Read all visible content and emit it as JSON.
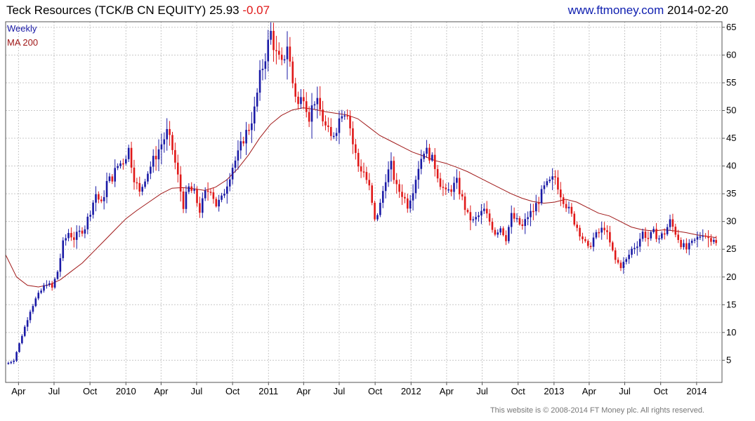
{
  "header": {
    "security": "Teck Resources (TCK/B CN EQUITY)",
    "last_price": "25.93",
    "change": "-0.07",
    "website": "www.ftmoney.com",
    "date": "2014-02-20"
  },
  "footer": {
    "copyright": "This website is © 2008-2014 FT Money plc. All rights reserved."
  },
  "colors": {
    "up": "#1a1aa6",
    "down": "#e01818",
    "ma": "#a01818",
    "grid": "#c8c8c8",
    "frame": "#555555"
  },
  "chart_data": {
    "type": "candlestick",
    "interval": "Weekly",
    "legend": [
      "Weekly",
      "MA 200"
    ],
    "y_axis": {
      "side": "right",
      "ticks": [
        5,
        10,
        15,
        20,
        25,
        30,
        35,
        40,
        45,
        50,
        55,
        60,
        65
      ],
      "range": [
        1,
        66
      ]
    },
    "x_axis": {
      "range": [
        "2009-02-27",
        "2014-03-07"
      ],
      "ticks": [
        {
          "label": "Apr",
          "date": "2009-04-01"
        },
        {
          "label": "Jul",
          "date": "2009-07-01"
        },
        {
          "label": "Oct",
          "date": "2009-10-01"
        },
        {
          "label": "2010",
          "date": "2010-01-01"
        },
        {
          "label": "Apr",
          "date": "2010-04-01"
        },
        {
          "label": "Jul",
          "date": "2010-07-01"
        },
        {
          "label": "Oct",
          "date": "2010-10-01"
        },
        {
          "label": "2011",
          "date": "2011-01-01"
        },
        {
          "label": "Apr",
          "date": "2011-04-01"
        },
        {
          "label": "Jul",
          "date": "2011-07-01"
        },
        {
          "label": "Oct",
          "date": "2011-10-01"
        },
        {
          "label": "2012",
          "date": "2012-01-01"
        },
        {
          "label": "Apr",
          "date": "2012-04-01"
        },
        {
          "label": "Jul",
          "date": "2012-07-01"
        },
        {
          "label": "Oct",
          "date": "2012-10-01"
        },
        {
          "label": "2013",
          "date": "2013-01-01"
        },
        {
          "label": "Apr",
          "date": "2013-04-01"
        },
        {
          "label": "Jul",
          "date": "2013-07-01"
        },
        {
          "label": "Oct",
          "date": "2013-10-01"
        },
        {
          "label": "2014",
          "date": "2014-01-01"
        }
      ]
    },
    "weekly_close": [
      [
        "2009-03-06",
        4.5
      ],
      [
        "2009-03-20",
        5
      ],
      [
        "2009-04-03",
        8
      ],
      [
        "2009-04-17",
        11
      ],
      [
        "2009-05-01",
        14
      ],
      [
        "2009-05-15",
        16
      ],
      [
        "2009-05-29",
        17.5
      ],
      [
        "2009-06-12",
        19
      ],
      [
        "2009-06-26",
        18
      ],
      [
        "2009-07-10",
        21
      ],
      [
        "2009-07-24",
        26
      ],
      [
        "2009-08-07",
        28
      ],
      [
        "2009-08-21",
        27
      ],
      [
        "2009-09-04",
        28
      ],
      [
        "2009-09-18",
        29
      ],
      [
        "2009-10-02",
        32
      ],
      [
        "2009-10-16",
        35
      ],
      [
        "2009-10-30",
        33
      ],
      [
        "2009-11-13",
        37
      ],
      [
        "2009-11-27",
        38
      ],
      [
        "2009-12-11",
        40
      ],
      [
        "2009-12-25",
        41
      ],
      [
        "2010-01-08",
        43
      ],
      [
        "2010-01-22",
        38
      ],
      [
        "2010-02-05",
        35
      ],
      [
        "2010-02-19",
        38
      ],
      [
        "2010-03-05",
        40
      ],
      [
        "2010-03-19",
        42
      ],
      [
        "2010-04-02",
        44
      ],
      [
        "2010-04-16",
        46
      ],
      [
        "2010-04-30",
        43
      ],
      [
        "2010-05-14",
        38
      ],
      [
        "2010-05-28",
        33
      ],
      [
        "2010-06-11",
        36
      ],
      [
        "2010-06-25",
        35
      ],
      [
        "2010-07-09",
        32
      ],
      [
        "2010-07-23",
        35
      ],
      [
        "2010-08-06",
        36
      ],
      [
        "2010-08-20",
        33
      ],
      [
        "2010-09-03",
        34
      ],
      [
        "2010-09-17",
        37
      ],
      [
        "2010-10-01",
        40
      ],
      [
        "2010-10-15",
        42
      ],
      [
        "2010-10-29",
        45
      ],
      [
        "2010-11-12",
        47
      ],
      [
        "2010-11-26",
        50
      ],
      [
        "2010-12-10",
        56
      ],
      [
        "2010-12-24",
        60
      ],
      [
        "2011-01-07",
        64
      ],
      [
        "2011-01-21",
        60
      ],
      [
        "2011-02-04",
        58
      ],
      [
        "2011-02-18",
        62
      ],
      [
        "2011-03-04",
        55
      ],
      [
        "2011-03-18",
        51
      ],
      [
        "2011-04-01",
        53
      ],
      [
        "2011-04-15",
        49
      ],
      [
        "2011-04-29",
        52
      ],
      [
        "2011-05-13",
        50
      ],
      [
        "2011-05-27",
        47
      ],
      [
        "2011-06-10",
        45
      ],
      [
        "2011-06-24",
        47
      ],
      [
        "2011-07-08",
        50
      ],
      [
        "2011-07-22",
        50
      ],
      [
        "2011-08-05",
        44
      ],
      [
        "2011-08-19",
        40
      ],
      [
        "2011-09-02",
        39
      ],
      [
        "2011-09-16",
        36
      ],
      [
        "2011-09-30",
        30
      ],
      [
        "2011-10-14",
        33
      ],
      [
        "2011-10-28",
        38
      ],
      [
        "2011-11-11",
        40
      ],
      [
        "2011-11-25",
        36
      ],
      [
        "2011-12-09",
        35
      ],
      [
        "2011-12-23",
        33
      ],
      [
        "2012-01-06",
        36
      ],
      [
        "2012-01-20",
        40
      ],
      [
        "2012-02-03",
        43
      ],
      [
        "2012-02-17",
        42
      ],
      [
        "2012-03-02",
        40
      ],
      [
        "2012-03-16",
        37
      ],
      [
        "2012-03-30",
        35
      ],
      [
        "2012-04-13",
        36
      ],
      [
        "2012-04-27",
        37
      ],
      [
        "2012-05-11",
        34
      ],
      [
        "2012-05-25",
        31
      ],
      [
        "2012-06-08",
        30
      ],
      [
        "2012-06-22",
        31
      ],
      [
        "2012-07-06",
        32
      ],
      [
        "2012-07-20",
        30
      ],
      [
        "2012-08-03",
        28
      ],
      [
        "2012-08-17",
        29
      ],
      [
        "2012-08-31",
        27
      ],
      [
        "2012-09-14",
        31
      ],
      [
        "2012-09-28",
        30
      ],
      [
        "2012-10-12",
        29
      ],
      [
        "2012-10-26",
        31
      ],
      [
        "2012-11-09",
        32
      ],
      [
        "2012-11-23",
        34
      ],
      [
        "2012-12-07",
        36
      ],
      [
        "2012-12-21",
        37
      ],
      [
        "2013-01-04",
        38
      ],
      [
        "2013-01-18",
        35
      ],
      [
        "2013-02-01",
        33
      ],
      [
        "2013-02-15",
        31
      ],
      [
        "2013-03-01",
        29
      ],
      [
        "2013-03-15",
        27
      ],
      [
        "2013-03-29",
        25
      ],
      [
        "2013-04-12",
        27
      ],
      [
        "2013-04-26",
        28
      ],
      [
        "2013-05-10",
        29
      ],
      [
        "2013-05-24",
        26
      ],
      [
        "2013-06-07",
        23
      ],
      [
        "2013-06-21",
        22
      ],
      [
        "2013-07-05",
        23
      ],
      [
        "2013-07-19",
        25
      ],
      [
        "2013-08-02",
        26
      ],
      [
        "2013-08-16",
        28
      ],
      [
        "2013-08-30",
        27
      ],
      [
        "2013-09-13",
        28
      ],
      [
        "2013-09-27",
        27
      ],
      [
        "2013-10-11",
        28
      ],
      [
        "2013-10-25",
        30
      ],
      [
        "2013-11-08",
        28
      ],
      [
        "2013-11-22",
        26
      ],
      [
        "2013-12-06",
        25
      ],
      [
        "2013-12-20",
        26
      ],
      [
        "2014-01-03",
        27
      ],
      [
        "2014-01-17",
        28
      ],
      [
        "2014-01-31",
        27
      ],
      [
        "2014-02-14",
        27
      ],
      [
        "2014-02-20",
        25.93
      ]
    ],
    "ma_200": [
      [
        "2009-02-27",
        24
      ],
      [
        "2009-03-27",
        20
      ],
      [
        "2009-04-24",
        18.5
      ],
      [
        "2009-05-22",
        18.2
      ],
      [
        "2009-06-19",
        18.6
      ],
      [
        "2009-07-17",
        19.5
      ],
      [
        "2009-08-14",
        21
      ],
      [
        "2009-09-11",
        22.5
      ],
      [
        "2009-10-09",
        24.5
      ],
      [
        "2009-11-06",
        26.5
      ],
      [
        "2009-12-04",
        28.5
      ],
      [
        "2010-01-01",
        30.5
      ],
      [
        "2010-01-29",
        32
      ],
      [
        "2010-03-01",
        33.5
      ],
      [
        "2010-04-01",
        35
      ],
      [
        "2010-04-29",
        36
      ],
      [
        "2010-05-27",
        36.1
      ],
      [
        "2010-06-24",
        35.9
      ],
      [
        "2010-07-22",
        35.6
      ],
      [
        "2010-08-19",
        36.2
      ],
      [
        "2010-09-16",
        37.5
      ],
      [
        "2010-10-14",
        39.5
      ],
      [
        "2010-11-11",
        42
      ],
      [
        "2010-12-09",
        45
      ],
      [
        "2011-01-06",
        47.5
      ],
      [
        "2011-02-03",
        49.1
      ],
      [
        "2011-03-03",
        50.1
      ],
      [
        "2011-03-31",
        50.5
      ],
      [
        "2011-04-28",
        50.2
      ],
      [
        "2011-05-26",
        49.8
      ],
      [
        "2011-06-23",
        49.5
      ],
      [
        "2011-07-21",
        49.2
      ],
      [
        "2011-08-18",
        48.5
      ],
      [
        "2011-09-15",
        47
      ],
      [
        "2011-10-13",
        45.5
      ],
      [
        "2011-11-10",
        44.5
      ],
      [
        "2011-12-08",
        43.5
      ],
      [
        "2012-01-05",
        42.5
      ],
      [
        "2012-02-02",
        41.8
      ],
      [
        "2012-03-01",
        41
      ],
      [
        "2012-03-29",
        40.5
      ],
      [
        "2012-04-26",
        39.8
      ],
      [
        "2012-05-24",
        39
      ],
      [
        "2012-06-21",
        38
      ],
      [
        "2012-07-19",
        37
      ],
      [
        "2012-08-16",
        36
      ],
      [
        "2012-09-13",
        35
      ],
      [
        "2012-10-11",
        34.2
      ],
      [
        "2012-11-08",
        33.6
      ],
      [
        "2012-12-06",
        33.3
      ],
      [
        "2013-01-03",
        33.5
      ],
      [
        "2013-01-31",
        34
      ],
      [
        "2013-02-28",
        33.5
      ],
      [
        "2013-03-28",
        32.5
      ],
      [
        "2013-04-25",
        31.5
      ],
      [
        "2013-05-23",
        31
      ],
      [
        "2013-06-20",
        30
      ],
      [
        "2013-07-18",
        29
      ],
      [
        "2013-08-15",
        28.5
      ],
      [
        "2013-09-12",
        28.3
      ],
      [
        "2013-10-10",
        28.5
      ],
      [
        "2013-11-07",
        28.3
      ],
      [
        "2013-12-05",
        28
      ],
      [
        "2014-01-02",
        27.6
      ],
      [
        "2014-01-30",
        27.3
      ],
      [
        "2014-02-20",
        27.1
      ]
    ]
  }
}
